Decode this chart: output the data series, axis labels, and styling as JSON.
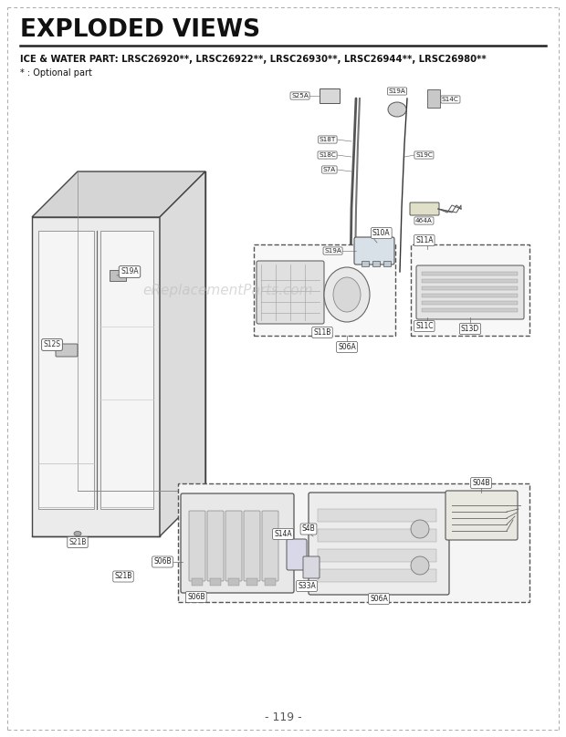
{
  "title": "EXPLODED VIEWS",
  "subtitle": "ICE & WATER PART: LRSC26920**, LRSC26922**, LRSC26930**, LRSC26944**, LRSC26980**",
  "optional_note": "* : Optional part",
  "page_number": "- 119 -",
  "bg_color": "#ffffff",
  "title_color": "#111111",
  "subtitle_color": "#111111",
  "watermark_text": "eReplacementParts.com",
  "watermark_color": "#bbbbbb",
  "fridge_face": "#e8e8e8",
  "fridge_top": "#d0d0d0",
  "fridge_side": "#d8d8d8",
  "fridge_edge": "#555555",
  "part_box_color": "#f0f0f0",
  "part_box_edge": "#555555"
}
